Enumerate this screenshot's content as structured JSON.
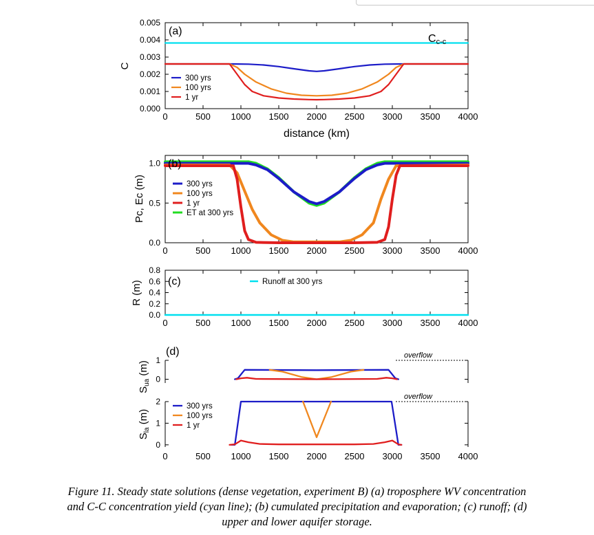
{
  "figure": {
    "caption_lines": [
      "Figure 11. Steady state solutions (dense vegetation, experiment B) (a) troposphere WV concentration",
      "and C-C concentration yield (cyan line); (b) cumulated precipitation and evaporation; (c) runoff; (d)",
      "upper and lower aquifer storage."
    ]
  },
  "chart_data": [
    {
      "id": "a",
      "type": "line",
      "panel_label": "(a)",
      "xlabel": "distance (km)",
      "ylabel": "C",
      "xlim": [
        0,
        4000
      ],
      "ylim": [
        0,
        0.005
      ],
      "xticks": [
        "0",
        "500",
        "1000",
        "1500",
        "2000",
        "2500",
        "3000",
        "3500",
        "4000"
      ],
      "yticks": [
        "0.000",
        "0.001",
        "0.002",
        "0.003",
        "0.004",
        "0.005"
      ],
      "annotation_main": "C",
      "annotation_sub": "c-c",
      "legend": [
        "300 yrs",
        "100 yrs",
        "1 yr"
      ],
      "series": [
        {
          "name": "Cc-c",
          "color": "#00e0ef",
          "x": [
            0,
            4000
          ],
          "y": [
            0.00382,
            0.00382
          ]
        },
        {
          "name": "300 yrs",
          "color": "#1c1cc8",
          "x": [
            0,
            900,
            1100,
            1300,
            1500,
            1700,
            1900,
            2000,
            2100,
            2300,
            2500,
            2700,
            2900,
            3100,
            4000
          ],
          "y": [
            0.0026,
            0.0026,
            0.00259,
            0.00254,
            0.00245,
            0.00232,
            0.0022,
            0.00217,
            0.0022,
            0.00232,
            0.00245,
            0.00254,
            0.00259,
            0.0026,
            0.0026
          ]
        },
        {
          "name": "100 yrs",
          "color": "#f0871e",
          "x": [
            0,
            850,
            950,
            1050,
            1200,
            1400,
            1600,
            1800,
            2000,
            2200,
            2400,
            2600,
            2800,
            2950,
            3050,
            3150,
            4000
          ],
          "y": [
            0.0026,
            0.0026,
            0.0024,
            0.002,
            0.00155,
            0.00115,
            0.0009,
            0.00078,
            0.00075,
            0.00078,
            0.0009,
            0.00115,
            0.00155,
            0.002,
            0.0024,
            0.0026,
            0.0026
          ]
        },
        {
          "name": "1 yr",
          "color": "#e01e1e",
          "x": [
            0,
            850,
            950,
            1050,
            1150,
            1300,
            1500,
            1700,
            1900,
            2000,
            2100,
            2300,
            2500,
            2700,
            2850,
            2950,
            3050,
            3150,
            4000
          ],
          "y": [
            0.0026,
            0.0026,
            0.002,
            0.0014,
            0.001,
            0.00075,
            0.00062,
            0.00056,
            0.00053,
            0.00052,
            0.00053,
            0.00056,
            0.00062,
            0.00075,
            0.001,
            0.0014,
            0.002,
            0.0026,
            0.0026
          ]
        }
      ]
    },
    {
      "id": "b",
      "type": "line",
      "panel_label": "(b)",
      "xlabel": "",
      "ylabel": "Pc, Ec (m)",
      "xlim": [
        0,
        4000
      ],
      "ylim": [
        0,
        1.1
      ],
      "xticks": [
        "0",
        "500",
        "1000",
        "1500",
        "2000",
        "2500",
        "3000",
        "3500",
        "4000"
      ],
      "yticks": [
        "0.0",
        "0.5",
        "1.0"
      ],
      "legend": [
        "300 yrs",
        "100 yrs",
        "1 yr",
        "ET at 300 yrs"
      ],
      "series": [
        {
          "name": "ET at 300 yrs",
          "color": "#22dd22",
          "x": [
            0,
            1100,
            1200,
            1350,
            1500,
            1700,
            1900,
            2000,
            2100,
            2300,
            2500,
            2650,
            2800,
            2900,
            4000
          ],
          "y": [
            1.02,
            1.02,
            1.0,
            0.93,
            0.82,
            0.64,
            0.5,
            0.47,
            0.5,
            0.64,
            0.82,
            0.93,
            1.0,
            1.02,
            1.02
          ]
        },
        {
          "name": "300 yrs",
          "color": "#1c1cc8",
          "x": [
            0,
            1100,
            1200,
            1350,
            1500,
            1700,
            1900,
            2000,
            2100,
            2300,
            2500,
            2650,
            2800,
            2900,
            4000
          ],
          "y": [
            1.0,
            1.0,
            0.98,
            0.92,
            0.81,
            0.64,
            0.52,
            0.49,
            0.52,
            0.64,
            0.81,
            0.92,
            0.98,
            1.0,
            1.0
          ]
        },
        {
          "name": "100 yrs",
          "color": "#f0871e",
          "x": [
            0,
            850,
            950,
            1050,
            1150,
            1250,
            1400,
            1550,
            1700,
            2000,
            2300,
            2450,
            2600,
            2750,
            2850,
            2950,
            3050,
            4000
          ],
          "y": [
            0.98,
            0.98,
            0.88,
            0.65,
            0.42,
            0.25,
            0.1,
            0.03,
            0.01,
            0.01,
            0.01,
            0.03,
            0.1,
            0.25,
            0.55,
            0.8,
            0.97,
            0.98
          ]
        },
        {
          "name": "1 yr",
          "color": "#e01e1e",
          "x": [
            0,
            900,
            950,
            1000,
            1050,
            1100,
            1200,
            1500,
            2000,
            2500,
            2800,
            2900,
            2950,
            3000,
            3050,
            3100,
            4000
          ],
          "y": [
            0.97,
            0.97,
            0.8,
            0.45,
            0.15,
            0.04,
            0.005,
            0.0,
            0.0,
            0.0,
            0.005,
            0.04,
            0.2,
            0.55,
            0.85,
            0.97,
            0.97
          ]
        }
      ]
    },
    {
      "id": "c",
      "type": "line",
      "panel_label": "(c)",
      "xlabel": "",
      "ylabel": "R (m)",
      "xlim": [
        0,
        4000
      ],
      "ylim": [
        0,
        0.8
      ],
      "xticks": [
        "0",
        "500",
        "1000",
        "1500",
        "2000",
        "2500",
        "3000",
        "3500",
        "4000"
      ],
      "yticks": [
        "0.0",
        "0.2",
        "0.4",
        "0.6",
        "0.8"
      ],
      "legend": [
        "Runoff at 300 yrs"
      ],
      "series": [
        {
          "name": "Runoff at 300 yrs",
          "color": "#00e0ef",
          "x": [
            0,
            4000
          ],
          "y": [
            0.0,
            0.0
          ]
        }
      ]
    },
    {
      "id": "d-upper",
      "type": "line",
      "panel_label": "(d)",
      "ylabel_main": "S",
      "ylabel_sub": "ua",
      "ylabel_unit": " (m)",
      "xlim": [
        0,
        4000
      ],
      "ylim": [
        -0.2,
        1.0
      ],
      "yticks": [
        "0",
        "1"
      ],
      "overflow_label": "overflow",
      "overflow_y": 1.0,
      "series": [
        {
          "name": "300 yrs",
          "color": "#1c1cc8",
          "x": [
            920,
            960,
            1050,
            2000,
            2950,
            3040,
            3080
          ],
          "y": [
            0.0,
            0.05,
            0.5,
            0.48,
            0.5,
            0.05,
            0.0
          ]
        },
        {
          "name": "100 yrs",
          "color": "#f0871e",
          "x": [
            1380,
            1550,
            1800,
            2000,
            2200,
            2450,
            2620
          ],
          "y": [
            0.5,
            0.4,
            0.12,
            0.0,
            0.12,
            0.4,
            0.5
          ]
        },
        {
          "name": "1 yr",
          "color": "#e01e1e",
          "x": [
            940,
            1000,
            1080,
            1200,
            2000,
            2800,
            2920,
            3000,
            3060
          ],
          "y": [
            0.0,
            0.05,
            0.08,
            0.02,
            0.0,
            0.02,
            0.08,
            0.05,
            0.0
          ]
        }
      ]
    },
    {
      "id": "d-lower",
      "type": "line",
      "panel_label": "",
      "ylabel_main": "S",
      "ylabel_sub": "la",
      "ylabel_unit": " (m)",
      "xlim": [
        0,
        4000
      ],
      "ylim": [
        -0.1,
        2.0
      ],
      "xticks": [
        "0",
        "500",
        "1000",
        "1500",
        "2000",
        "2500",
        "3000",
        "3500",
        "4000"
      ],
      "yticks": [
        "0",
        "1",
        "2"
      ],
      "overflow_label": "overflow",
      "overflow_y": 2.0,
      "legend": [
        "300 yrs",
        "100 yrs",
        "1 yr"
      ],
      "series": [
        {
          "name": "300 yrs",
          "color": "#1c1cc8",
          "x": [
            870,
            920,
            1000,
            2990,
            3080,
            3120
          ],
          "y": [
            0.0,
            0.0,
            2.0,
            2.0,
            0.0,
            0.0
          ]
        },
        {
          "name": "100 yrs",
          "color": "#f0871e",
          "x": [
            1820,
            2000,
            2190
          ],
          "y": [
            2.0,
            0.35,
            2.0
          ]
        },
        {
          "name": "1 yr",
          "color": "#e01e1e",
          "x": [
            850,
            920,
            1000,
            1100,
            1250,
            1500,
            2000,
            2500,
            2750,
            2900,
            3000,
            3080,
            3120
          ],
          "y": [
            0.0,
            0.02,
            0.2,
            0.12,
            0.04,
            0.02,
            0.02,
            0.02,
            0.04,
            0.12,
            0.2,
            0.02,
            0.0
          ]
        }
      ]
    }
  ]
}
